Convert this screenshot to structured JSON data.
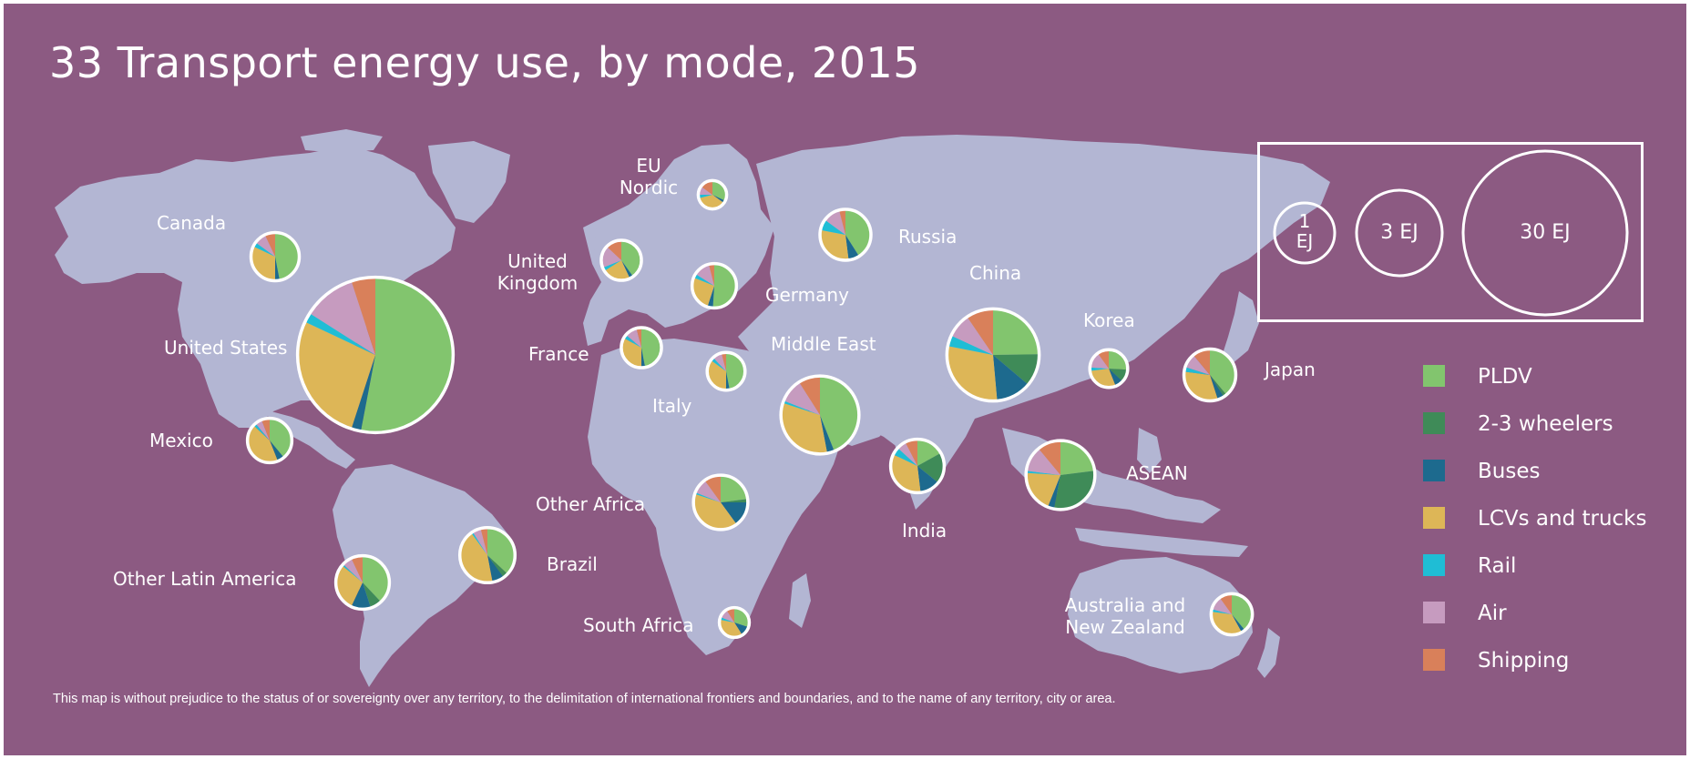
{
  "title": "33 Transport energy use, by mode, 2015",
  "disclaimer": "This map is without prejudice to the status of or sovereignty over any territory, to the delimitation of international frontiers and boundaries, and to the name of any territory, city or area.",
  "colors": {
    "background": "#8c5a82",
    "land": "#b3b6d3",
    "PLDV": "#82c56e",
    "2-3 wheelers": "#3f8b58",
    "Buses": "#1d6a8e",
    "LCVs and trucks": "#ddb657",
    "Rail": "#1fbdd5",
    "Air": "#c69bbf",
    "Shipping": "#d9805a"
  },
  "legend": {
    "modes": [
      "PLDV",
      "2-3 wheelers",
      "Buses",
      "LCVs and trucks",
      "Rail",
      "Air",
      "Shipping"
    ]
  },
  "scale": {
    "circles": [
      {
        "label_line1": "1",
        "label_line2": "EJ",
        "value_ej": 1
      },
      {
        "label_line1": "3 EJ",
        "label_line2": "",
        "value_ej": 3
      },
      {
        "label_line1": "30 EJ",
        "label_line2": "",
        "value_ej": 30
      }
    ]
  },
  "chart_data": {
    "type": "pie",
    "title": "33 Transport energy use, by mode, 2015",
    "unit": "EJ",
    "modes": [
      "PLDV",
      "2-3 wheelers",
      "Buses",
      "LCVs and trucks",
      "Rail",
      "Air",
      "Shipping"
    ],
    "regions": [
      {
        "name": "Canada",
        "label": "Canada",
        "total_ej": 2.6,
        "shares": [
          0.47,
          0.0,
          0.03,
          0.32,
          0.03,
          0.08,
          0.07
        ]
      },
      {
        "name": "United States",
        "label": "United States",
        "total_ej": 27,
        "shares": [
          0.53,
          0.0,
          0.02,
          0.27,
          0.02,
          0.11,
          0.05
        ]
      },
      {
        "name": "Mexico",
        "label": "Mexico",
        "total_ej": 2.2,
        "shares": [
          0.39,
          0.0,
          0.05,
          0.43,
          0.02,
          0.05,
          0.06
        ]
      },
      {
        "name": "Other Latin America",
        "label": "Other Latin America",
        "total_ej": 3.2,
        "shares": [
          0.38,
          0.07,
          0.12,
          0.29,
          0.01,
          0.06,
          0.07
        ]
      },
      {
        "name": "Brazil",
        "label": "Brazil",
        "total_ej": 3.4,
        "shares": [
          0.37,
          0.03,
          0.07,
          0.43,
          0.01,
          0.05,
          0.04
        ]
      },
      {
        "name": "EU Nordic",
        "label": "EU\nNordic",
        "total_ej": 0.9,
        "shares": [
          0.32,
          0.0,
          0.03,
          0.36,
          0.04,
          0.1,
          0.15
        ]
      },
      {
        "name": "United Kingdom",
        "label": "United\nKingdom",
        "total_ej": 1.8,
        "shares": [
          0.4,
          0.0,
          0.03,
          0.23,
          0.03,
          0.18,
          0.13
        ]
      },
      {
        "name": "Germany",
        "label": "Germany",
        "total_ej": 2.2,
        "shares": [
          0.51,
          0.0,
          0.04,
          0.26,
          0.03,
          0.12,
          0.04
        ]
      },
      {
        "name": "France",
        "label": "France",
        "total_ej": 1.8,
        "shares": [
          0.47,
          0.0,
          0.03,
          0.33,
          0.03,
          0.1,
          0.04
        ]
      },
      {
        "name": "Italy",
        "label": "Italy",
        "total_ej": 1.6,
        "shares": [
          0.47,
          0.0,
          0.03,
          0.35,
          0.03,
          0.08,
          0.04
        ]
      },
      {
        "name": "Russia",
        "label": "Russia",
        "total_ej": 2.9,
        "shares": [
          0.41,
          0.0,
          0.07,
          0.3,
          0.07,
          0.11,
          0.04
        ]
      },
      {
        "name": "Middle East",
        "label": "Middle East",
        "total_ej": 6.8,
        "shares": [
          0.44,
          0.0,
          0.03,
          0.33,
          0.01,
          0.1,
          0.09
        ]
      },
      {
        "name": "Other Africa",
        "label": "Other Africa",
        "total_ej": 3.3,
        "shares": [
          0.23,
          0.02,
          0.15,
          0.4,
          0.01,
          0.09,
          0.1
        ]
      },
      {
        "name": "South Africa",
        "label": "South Africa",
        "total_ej": 1.0,
        "shares": [
          0.3,
          0.0,
          0.11,
          0.37,
          0.03,
          0.1,
          0.09
        ]
      },
      {
        "name": "India",
        "label": "India",
        "total_ej": 3.2,
        "shares": [
          0.18,
          0.2,
          0.13,
          0.36,
          0.05,
          0.06,
          0.08
        ]
      },
      {
        "name": "China",
        "label": "China",
        "total_ej": 9.5,
        "shares": [
          0.26,
          0.12,
          0.13,
          0.31,
          0.04,
          0.09,
          0.1
        ]
      },
      {
        "name": "Korea",
        "label": "Korea",
        "total_ej": 1.6,
        "shares": [
          0.26,
          0.11,
          0.07,
          0.29,
          0.03,
          0.14,
          0.1
        ]
      },
      {
        "name": "Japan",
        "label": "Japan",
        "total_ej": 3.0,
        "shares": [
          0.39,
          0.02,
          0.04,
          0.32,
          0.03,
          0.09,
          0.11
        ]
      },
      {
        "name": "ASEAN",
        "label": "ASEAN",
        "total_ej": 5.3,
        "shares": [
          0.23,
          0.3,
          0.03,
          0.2,
          0.01,
          0.12,
          0.11
        ]
      },
      {
        "name": "Australia and New Zealand",
        "label": "Australia and\nNew Zealand",
        "total_ej": 1.9,
        "shares": [
          0.39,
          0.0,
          0.03,
          0.35,
          0.02,
          0.11,
          0.1
        ]
      }
    ]
  }
}
